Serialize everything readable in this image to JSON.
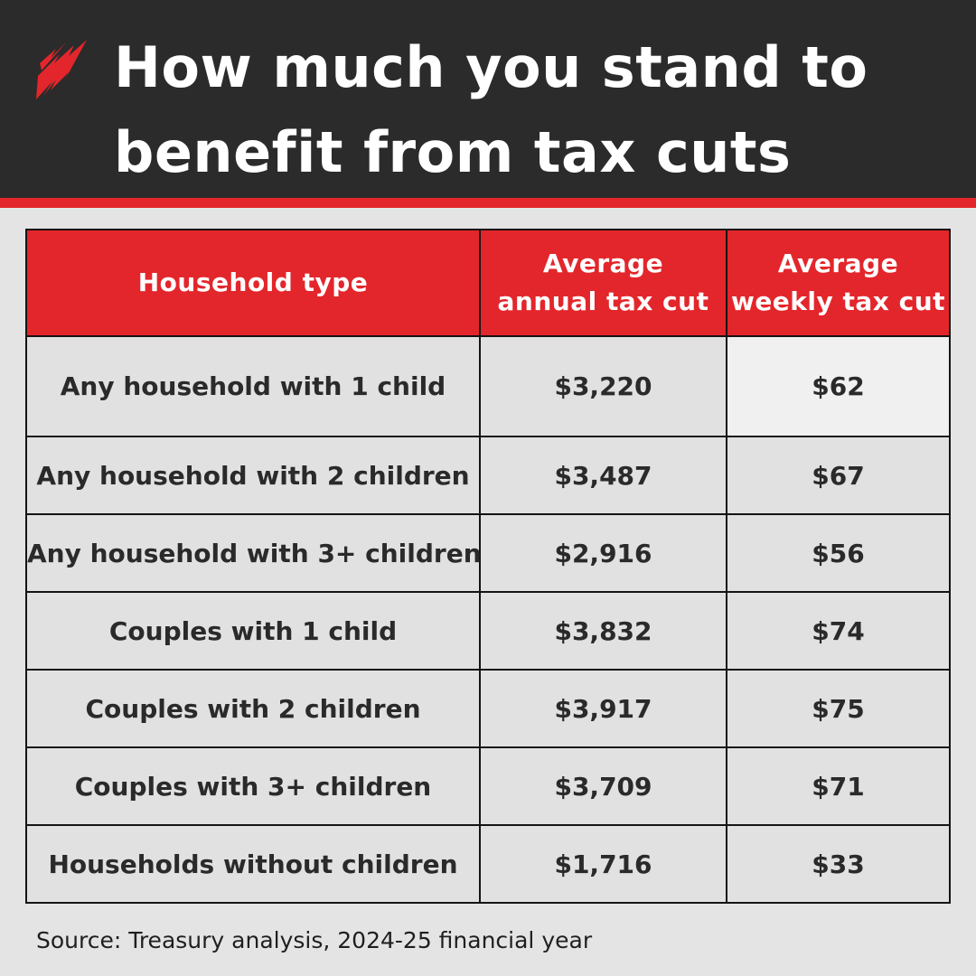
{
  "header": {
    "title_line1": "How much you stand to",
    "title_line2": "benefit from tax cuts",
    "logo_icon": "sbs-logo-icon"
  },
  "colors": {
    "accent": "#e3262b",
    "header_bg": "#2b2b2b",
    "page_bg": "#e4e4e4",
    "cell_bg": "#e1e1e1",
    "highlight_cell_bg": "#f0f0f0"
  },
  "chart_data": {
    "type": "table",
    "title": "How much you stand to benefit from tax cuts",
    "columns": [
      "Household type",
      "Average annual tax cut",
      "Average weekly tax cut"
    ],
    "header_lines": [
      [
        "Household type"
      ],
      [
        "Average",
        "annual tax cut"
      ],
      [
        "Average",
        "weekly tax cut"
      ]
    ],
    "rows": [
      [
        "Any household with 1 child",
        "$3,220",
        "$62"
      ],
      [
        "Any household with 2 children",
        "$3,487",
        "$67"
      ],
      [
        "Any household with 3+ children",
        "$2,916",
        "$56"
      ],
      [
        "Couples with 1 child",
        "$3,832",
        "$74"
      ],
      [
        "Couples with 2 children",
        "$3,917",
        "$75"
      ],
      [
        "Couples with 3+ children",
        "$3,709",
        "$71"
      ],
      [
        "Households without children",
        "$1,716",
        "$33"
      ]
    ],
    "highlighted_cell": "$62"
  },
  "footer": {
    "source": "Source: Treasury analysis, 2024-25 financial year"
  }
}
